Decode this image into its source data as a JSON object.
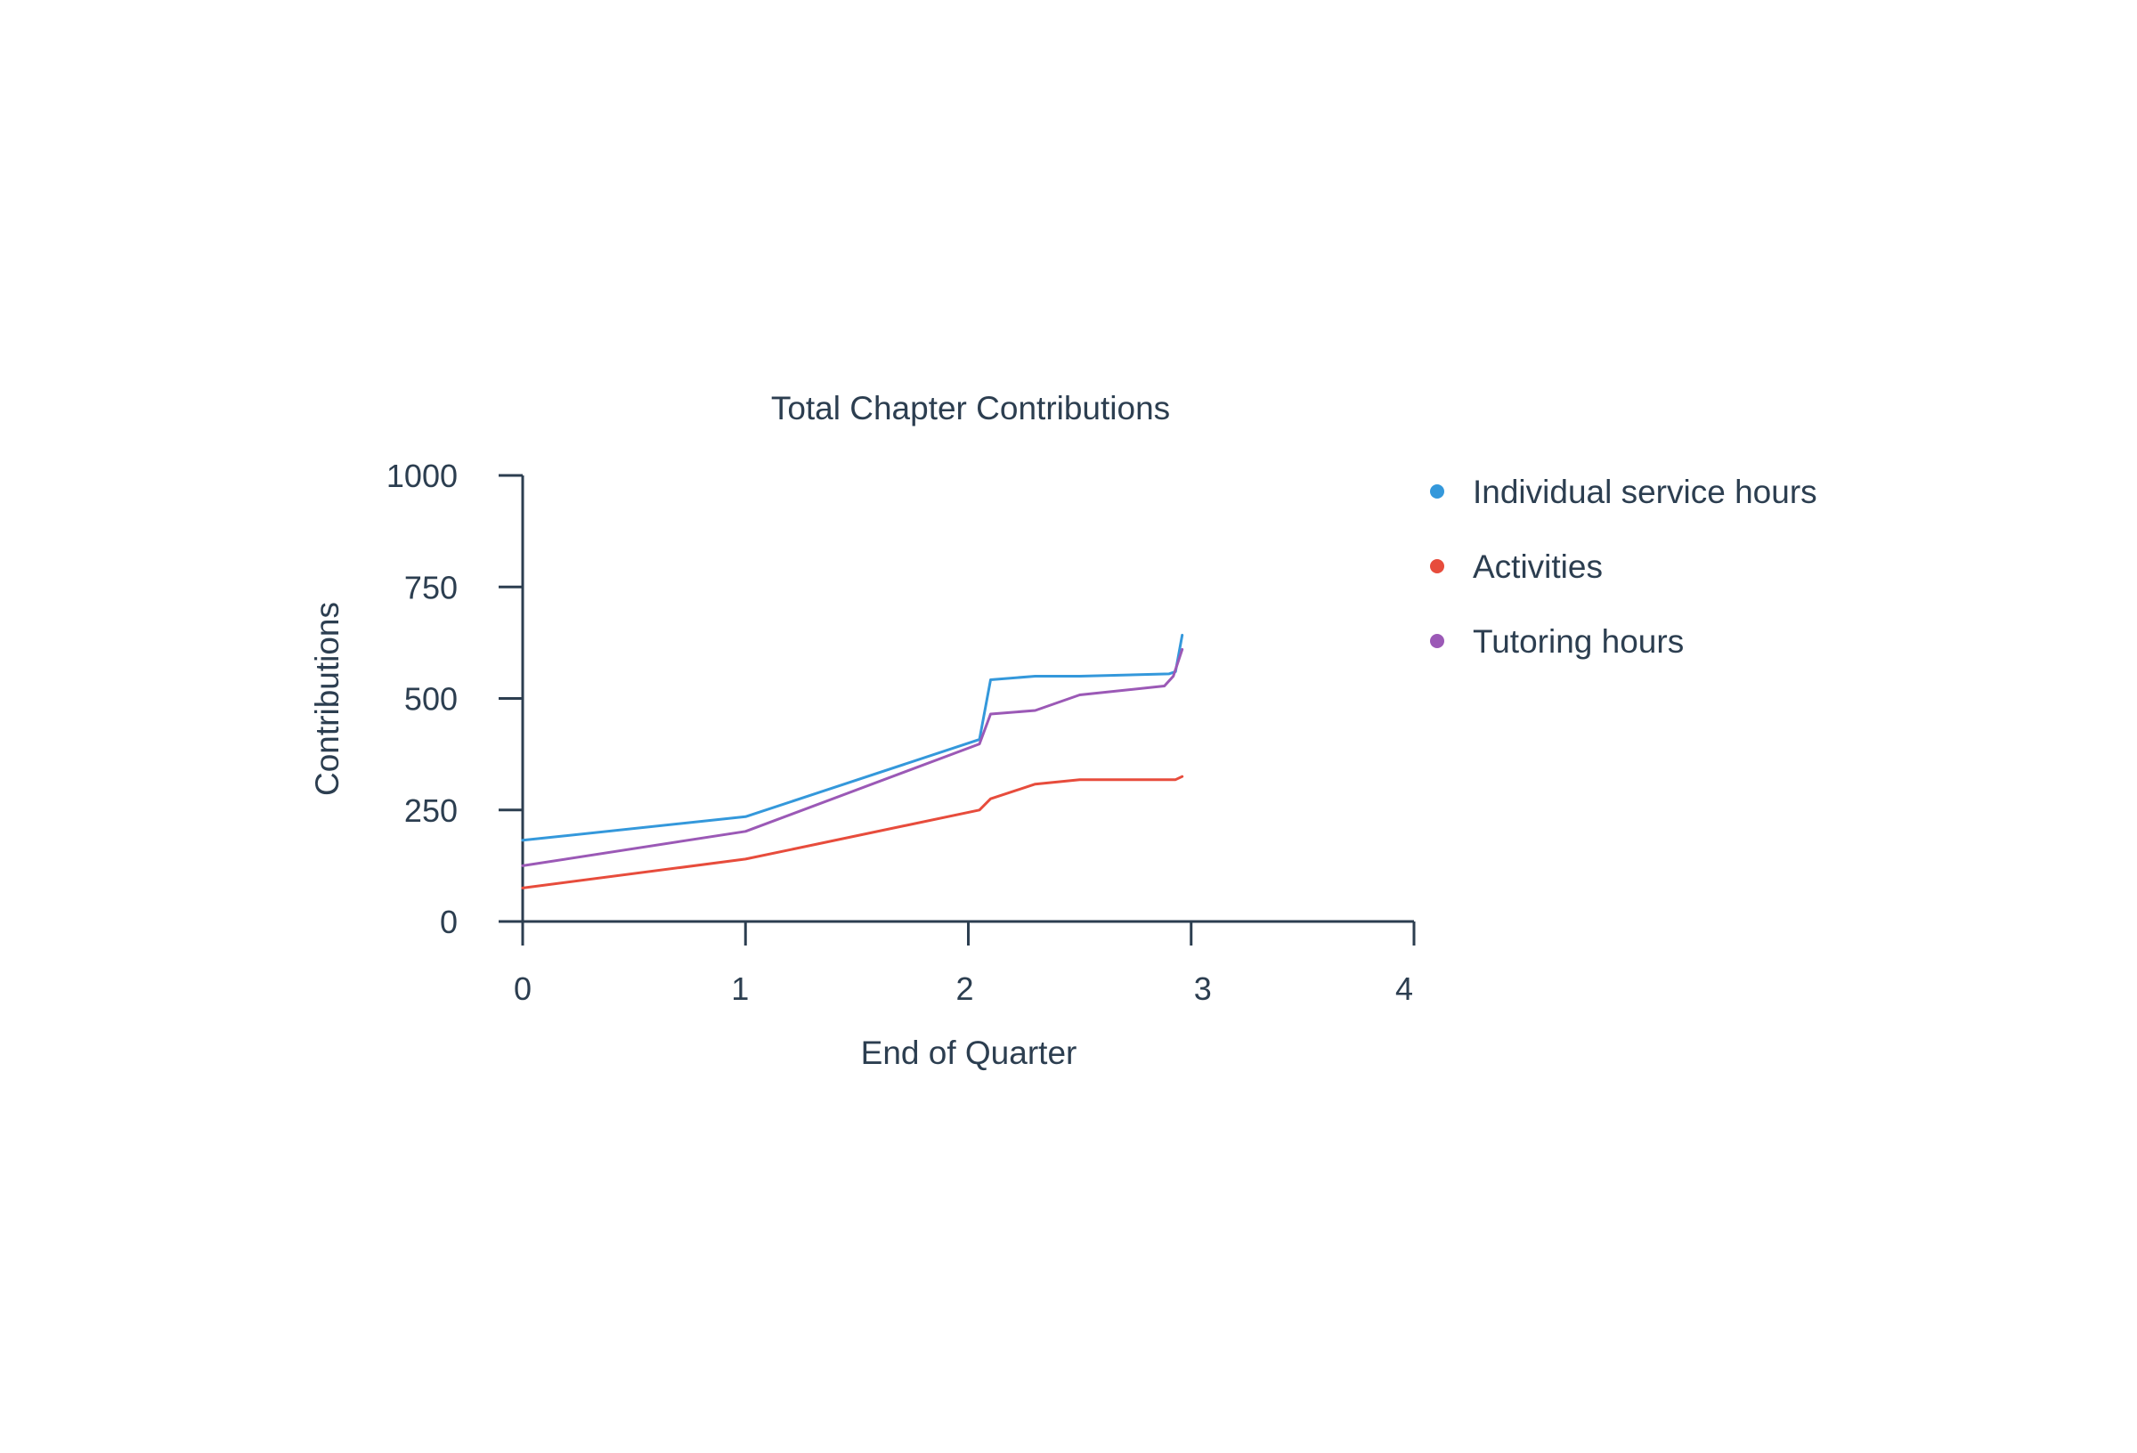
{
  "chart_data": {
    "type": "line",
    "title": "Total Chapter Contributions",
    "xlabel": "End of Quarter",
    "ylabel": "Contributions",
    "xlim": [
      0,
      4
    ],
    "ylim": [
      0,
      1000
    ],
    "x_ticks": [
      0,
      1,
      2,
      3,
      4
    ],
    "y_ticks": [
      0,
      250,
      500,
      750,
      1000
    ],
    "x_tick_labels": [
      "0",
      "1",
      "2",
      "3",
      "4"
    ],
    "y_tick_labels": [
      "0",
      "250",
      "500",
      "750",
      "1000"
    ],
    "grid": false,
    "legend_position": "right",
    "series": [
      {
        "name": "Individual service hours",
        "color": "#3498db",
        "x": [
          0,
          1,
          2.05,
          2.1,
          2.3,
          2.5,
          2.9,
          2.93,
          2.96
        ],
        "y": [
          182,
          235,
          408,
          542,
          550,
          550,
          555,
          560,
          642
        ]
      },
      {
        "name": "Activities",
        "color": "#e74c3c",
        "x": [
          0,
          1,
          2.05,
          2.1,
          2.3,
          2.5,
          2.9,
          2.93,
          2.96
        ],
        "y": [
          75,
          140,
          250,
          275,
          308,
          318,
          318,
          318,
          325
        ]
      },
      {
        "name": "Tutoring hours",
        "color": "#9b59b6",
        "x": [
          0,
          1,
          2.05,
          2.1,
          2.3,
          2.5,
          2.88,
          2.92,
          2.96
        ],
        "y": [
          125,
          202,
          398,
          465,
          473,
          508,
          528,
          550,
          610
        ]
      }
    ]
  }
}
